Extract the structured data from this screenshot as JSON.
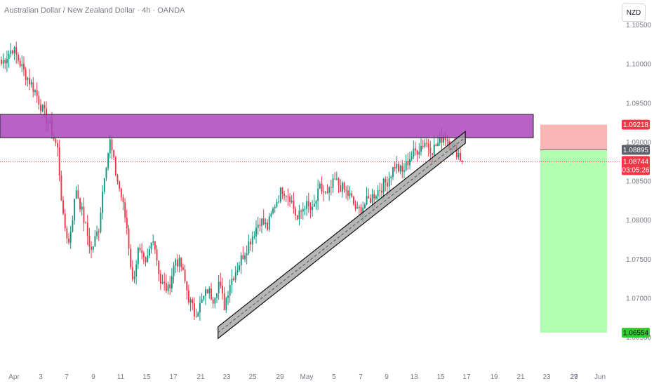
{
  "header": {
    "title": "Australian Dollar / New Zealand Dollar · 4h · OANDA",
    "currency_button": "NZD"
  },
  "chart_data": {
    "type": "candlestick",
    "symbol": "AUDNZD",
    "timeframe": "4h",
    "ylim": [
      1.063,
      1.105
    ],
    "price_ticks": [
      "1.10500",
      "1.10000",
      "1.09500",
      "1.09000",
      "1.08500",
      "1.08000",
      "1.07500",
      "1.07000",
      "1.06500"
    ],
    "date_ticks": [
      "Apr",
      "3",
      "7",
      "9",
      "11",
      "15",
      "17",
      "21",
      "23",
      "25",
      "29",
      "May",
      "5",
      "7",
      "9",
      "13",
      "15",
      "17",
      "19",
      "21",
      "23",
      "27",
      "29",
      "Jun"
    ],
    "colors": {
      "up": "#089981",
      "down": "#f23645",
      "zone": "#ab47bc",
      "tp": "#66ff66",
      "sl": "#f7a1a1"
    },
    "price_tags": {
      "stop_loss": "1.09218",
      "entry": "1.08895",
      "current_price": "1.08744",
      "countdown": "03:05:26",
      "take_profit": "1.06554"
    },
    "anchor_path": [
      [
        0,
        1.1
      ],
      [
        6,
        1.102
      ],
      [
        12,
        1.099
      ],
      [
        18,
        1.0965
      ],
      [
        22,
        1.094
      ],
      [
        26,
        1.092
      ],
      [
        30,
        1.089
      ],
      [
        33,
        1.08
      ],
      [
        36,
        1.077
      ],
      [
        40,
        1.084
      ],
      [
        44,
        1.08
      ],
      [
        48,
        1.076
      ],
      [
        52,
        1.079
      ],
      [
        55,
        1.086
      ],
      [
        58,
        1.09
      ],
      [
        61,
        1.086
      ],
      [
        64,
        1.083
      ],
      [
        67,
        1.079
      ],
      [
        70,
        1.072
      ],
      [
        73,
        1.076
      ],
      [
        77,
        1.074
      ],
      [
        81,
        1.078
      ],
      [
        85,
        1.072
      ],
      [
        89,
        1.071
      ],
      [
        93,
        1.075
      ],
      [
        96,
        1.074
      ],
      [
        100,
        1.07
      ],
      [
        103,
        1.068
      ],
      [
        106,
        1.069
      ],
      [
        110,
        1.071
      ],
      [
        113,
        1.07
      ],
      [
        116,
        1.072
      ],
      [
        119,
        1.069
      ],
      [
        122,
        1.072
      ],
      [
        126,
        1.074
      ],
      [
        130,
        1.076
      ],
      [
        134,
        1.078
      ],
      [
        138,
        1.08
      ],
      [
        142,
        1.079
      ],
      [
        146,
        1.082
      ],
      [
        150,
        1.084
      ],
      [
        154,
        1.083
      ],
      [
        158,
        1.08
      ],
      [
        162,
        1.082
      ],
      [
        166,
        1.081
      ],
      [
        170,
        1.084
      ],
      [
        174,
        1.083
      ],
      [
        178,
        1.085
      ],
      [
        182,
        1.084
      ],
      [
        186,
        1.083
      ],
      [
        190,
        1.081
      ],
      [
        194,
        1.082
      ],
      [
        198,
        1.083
      ],
      [
        202,
        1.084
      ],
      [
        206,
        1.085
      ],
      [
        210,
        1.087
      ],
      [
        214,
        1.086
      ],
      [
        218,
        1.088
      ],
      [
        222,
        1.089
      ],
      [
        226,
        1.09
      ],
      [
        230,
        1.089
      ],
      [
        234,
        1.09
      ],
      [
        236,
        1.091
      ],
      [
        240,
        1.0895
      ],
      [
        244,
        1.0885
      ],
      [
        246,
        1.0874
      ]
    ],
    "support_zone": {
      "from": 1.0905,
      "to": 1.0935
    },
    "channel": {
      "start": [
        116,
        1.0648,
        1.0663
      ],
      "end": [
        248,
        1.0898,
        1.0913
      ]
    },
    "position": {
      "entry": 1.08895,
      "stop": 1.09218,
      "target": 1.06554
    }
  }
}
